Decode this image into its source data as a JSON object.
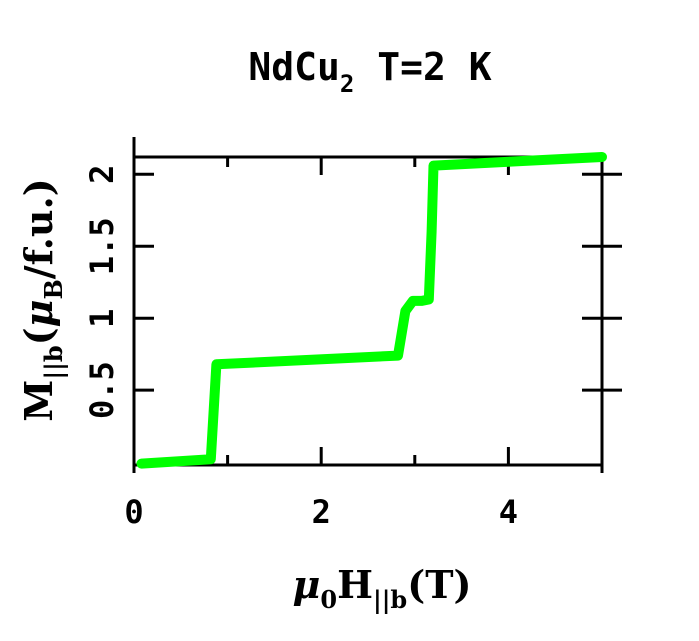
{
  "chart_data": {
    "type": "line",
    "title": {
      "main": "NdCu",
      "main_sub": "2",
      "rest": " T=2 K"
    },
    "xlabel": {
      "greek": "μ",
      "sub1": "0",
      "main": "H",
      "sub2": "||b",
      "unit": "(T)"
    },
    "ylabel": {
      "main": "M",
      "sub1": "||b",
      "open": "(",
      "greek": "μ",
      "sub2": "B",
      "unit": "/f.u.)"
    },
    "xlim": [
      0,
      5
    ],
    "ylim": [
      -0.02,
      2.12
    ],
    "xticks": [
      {
        "value": 0,
        "label": "0"
      },
      {
        "value": 2,
        "label": "2"
      },
      {
        "value": 4,
        "label": "4"
      }
    ],
    "yticks": [
      {
        "value": 0.5,
        "label": "0.5"
      },
      {
        "value": 1,
        "label": "1"
      },
      {
        "value": 1.5,
        "label": "1.5"
      },
      {
        "value": 2,
        "label": "2"
      }
    ],
    "grid": false,
    "series": [
      {
        "color": "#00ff00",
        "x": [
          0.08,
          0.82,
          0.88,
          2.82,
          2.9,
          2.98,
          3.07,
          3.15,
          3.18,
          3.2,
          5.0
        ],
        "y": [
          -0.01,
          0.02,
          0.68,
          0.74,
          1.05,
          1.12,
          1.12,
          1.13,
          1.6,
          2.06,
          2.12
        ]
      }
    ]
  }
}
